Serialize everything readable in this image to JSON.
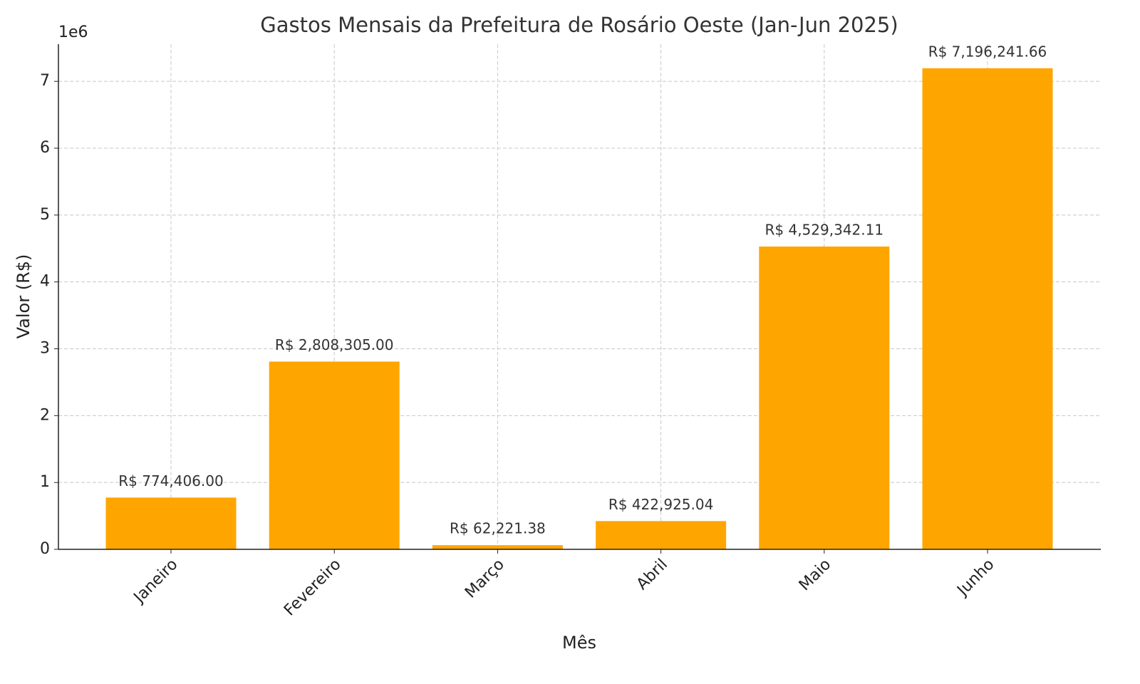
{
  "chart_data": {
    "type": "bar",
    "title": "Gastos Mensais da Prefeitura de Rosário Oeste (Jan-Jun 2025)",
    "x_label": "Mês",
    "y_label": "Valor (R$)",
    "y_offset_label": "1e6",
    "categories": [
      "Janeiro",
      "Fevereiro",
      "Março",
      "Abril",
      "Maio",
      "Junho"
    ],
    "values": [
      774406.0,
      2808305.0,
      62221.38,
      422925.04,
      4529342.11,
      7196241.66
    ],
    "value_labels": [
      "R$ 774,406.00",
      "R$ 2,808,305.00",
      "R$ 62,221.38",
      "R$ 422,925.04",
      "R$ 4,529,342.11",
      "R$ 7,196,241.66"
    ],
    "color": "#ffa500",
    "ylim": [
      0,
      7556000
    ],
    "yticks": [
      {
        "value": 0,
        "label": "0"
      },
      {
        "value": 1000000,
        "label": "1"
      },
      {
        "value": 2000000,
        "label": "2"
      },
      {
        "value": 3000000,
        "label": "3"
      },
      {
        "value": 4000000,
        "label": "4"
      },
      {
        "value": 5000000,
        "label": "5"
      },
      {
        "value": 6000000,
        "label": "6"
      },
      {
        "value": 7000000,
        "label": "7"
      }
    ],
    "grid": true
  }
}
